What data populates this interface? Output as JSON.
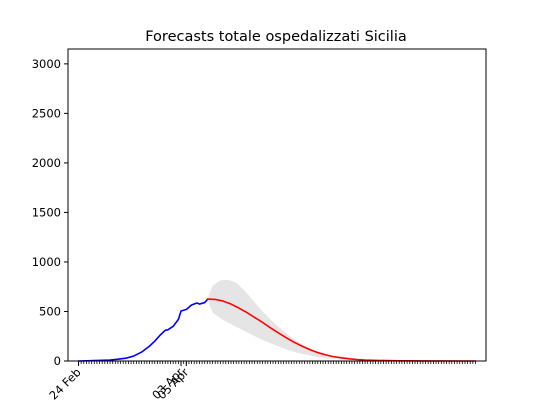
{
  "chart_data": {
    "type": "line",
    "title": "Forecasts totale ospedalizzati Sicilia",
    "xlabel": "",
    "ylabel": "",
    "x_start": "2020-02-24",
    "x_end": "2020-07-24",
    "xlim": [
      "2020-02-20",
      "2020-07-28"
    ],
    "ylim": [
      0,
      3150
    ],
    "y_ticks": [
      0,
      500,
      1000,
      1500,
      2000,
      2500,
      3000
    ],
    "x_tick_labels": [
      {
        "date": "2020-02-24",
        "label": "24 Feb"
      },
      {
        "date": "2020-04-03",
        "label": "03 Apr"
      },
      {
        "date": "2020-04-05",
        "label": "05 Apr"
      }
    ],
    "grid": false,
    "series": [
      {
        "role": "observed",
        "color": "#0000ff",
        "points": [
          [
            "2020-02-24",
            0
          ],
          [
            "2020-02-27",
            2
          ],
          [
            "2020-03-01",
            4
          ],
          [
            "2020-03-04",
            7
          ],
          [
            "2020-03-07",
            10
          ],
          [
            "2020-03-10",
            18
          ],
          [
            "2020-03-13",
            28
          ],
          [
            "2020-03-16",
            50
          ],
          [
            "2020-03-19",
            90
          ],
          [
            "2020-03-22",
            150
          ],
          [
            "2020-03-24",
            200
          ],
          [
            "2020-03-26",
            260
          ],
          [
            "2020-03-28",
            310
          ],
          [
            "2020-03-29",
            315
          ],
          [
            "2020-03-31",
            350
          ],
          [
            "2020-04-02",
            420
          ],
          [
            "2020-04-03",
            505
          ],
          [
            "2020-04-05",
            520
          ],
          [
            "2020-04-07",
            565
          ],
          [
            "2020-04-09",
            585
          ],
          [
            "2020-04-10",
            575
          ],
          [
            "2020-04-12",
            590
          ],
          [
            "2020-04-13",
            620
          ]
        ]
      },
      {
        "role": "forecast",
        "color": "#ff0000",
        "points": [
          [
            "2020-04-13",
            625
          ],
          [
            "2020-04-16",
            622
          ],
          [
            "2020-04-19",
            605
          ],
          [
            "2020-04-22",
            575
          ],
          [
            "2020-04-25",
            535
          ],
          [
            "2020-04-28",
            490
          ],
          [
            "2020-05-01",
            440
          ],
          [
            "2020-05-04",
            390
          ],
          [
            "2020-05-07",
            335
          ],
          [
            "2020-05-10",
            285
          ],
          [
            "2020-05-13",
            235
          ],
          [
            "2020-05-16",
            190
          ],
          [
            "2020-05-19",
            150
          ],
          [
            "2020-05-22",
            115
          ],
          [
            "2020-05-25",
            85
          ],
          [
            "2020-05-28",
            62
          ],
          [
            "2020-05-31",
            44
          ],
          [
            "2020-06-03",
            32
          ],
          [
            "2020-06-06",
            22
          ],
          [
            "2020-06-09",
            15
          ],
          [
            "2020-06-12",
            10
          ],
          [
            "2020-06-15",
            7
          ],
          [
            "2020-06-20",
            4
          ],
          [
            "2020-06-25",
            2
          ],
          [
            "2020-07-05",
            1
          ],
          [
            "2020-07-24",
            0
          ]
        ]
      }
    ],
    "confidence_band": {
      "color": "#e5e5e5",
      "upper": [
        [
          "2020-04-13",
          625
        ],
        [
          "2020-04-15",
          760
        ],
        [
          "2020-04-18",
          815
        ],
        [
          "2020-04-21",
          820
        ],
        [
          "2020-04-24",
          790
        ],
        [
          "2020-04-27",
          715
        ],
        [
          "2020-04-30",
          625
        ],
        [
          "2020-05-03",
          530
        ],
        [
          "2020-05-06",
          445
        ],
        [
          "2020-05-09",
          370
        ],
        [
          "2020-05-12",
          300
        ],
        [
          "2020-05-15",
          240
        ],
        [
          "2020-05-18",
          185
        ],
        [
          "2020-05-21",
          140
        ],
        [
          "2020-05-24",
          105
        ],
        [
          "2020-05-27",
          78
        ],
        [
          "2020-05-30",
          56
        ],
        [
          "2020-06-02",
          40
        ],
        [
          "2020-06-05",
          28
        ],
        [
          "2020-06-10",
          16
        ],
        [
          "2020-06-15",
          9
        ],
        [
          "2020-06-25",
          3
        ],
        [
          "2020-07-24",
          0
        ]
      ],
      "lower": [
        [
          "2020-04-13",
          625
        ],
        [
          "2020-04-15",
          490
        ],
        [
          "2020-04-18",
          430
        ],
        [
          "2020-04-21",
          385
        ],
        [
          "2020-04-24",
          345
        ],
        [
          "2020-04-27",
          305
        ],
        [
          "2020-04-30",
          265
        ],
        [
          "2020-05-03",
          225
        ],
        [
          "2020-05-06",
          190
        ],
        [
          "2020-05-09",
          158
        ],
        [
          "2020-05-12",
          128
        ],
        [
          "2020-05-15",
          100
        ],
        [
          "2020-05-18",
          78
        ],
        [
          "2020-05-21",
          60
        ],
        [
          "2020-05-24",
          45
        ],
        [
          "2020-05-27",
          34
        ],
        [
          "2020-05-30",
          25
        ],
        [
          "2020-06-02",
          18
        ],
        [
          "2020-06-05",
          12
        ],
        [
          "2020-06-10",
          7
        ],
        [
          "2020-06-15",
          4
        ],
        [
          "2020-06-25",
          1
        ],
        [
          "2020-07-24",
          0
        ]
      ]
    }
  }
}
